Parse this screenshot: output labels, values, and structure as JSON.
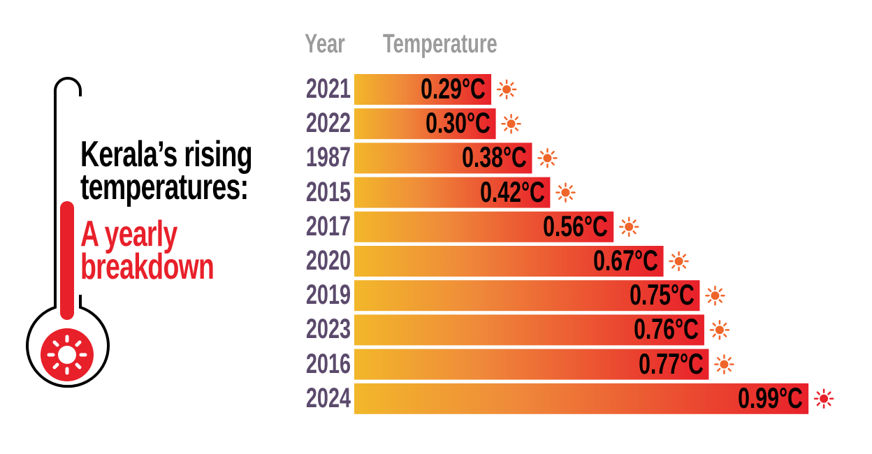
{
  "title": {
    "line1": "Kerala’s rising",
    "line2": "temperatures:",
    "line3": "A yearly",
    "line4": "breakdown"
  },
  "headers": {
    "year": "Year",
    "temperature": "Temperature"
  },
  "colors": {
    "title_black": "#000000",
    "title_red": "#e8202a",
    "year_label": "#5b4a6c",
    "header": "#9b9b9b",
    "bar_start": "#f2b72a",
    "bar_mid": "#ef7d30",
    "bar_end": "#e8202a",
    "sun": "#f0652a",
    "sun_max": "#e8202a"
  },
  "icons": {
    "thermometer": "thermometer-icon",
    "sun": "sun-icon"
  },
  "chart_data": {
    "type": "bar",
    "orientation": "horizontal",
    "title": "Kerala’s rising temperatures: A yearly breakdown",
    "xlabel": "Temperature",
    "ylabel": "Year",
    "unit": "°C",
    "categories": [
      "2021",
      "2022",
      "1987",
      "2015",
      "2017",
      "2020",
      "2019",
      "2023",
      "2016",
      "2024"
    ],
    "values": [
      0.29,
      0.3,
      0.38,
      0.42,
      0.56,
      0.67,
      0.75,
      0.76,
      0.77,
      0.99
    ],
    "labels": [
      "0.29°C",
      "0.30°C",
      "0.38°C",
      "0.42°C",
      "0.56°C",
      "0.67°C",
      "0.75°C",
      "0.76°C",
      "0.77°C",
      "0.99°C"
    ],
    "grid": false,
    "legend": "none"
  }
}
